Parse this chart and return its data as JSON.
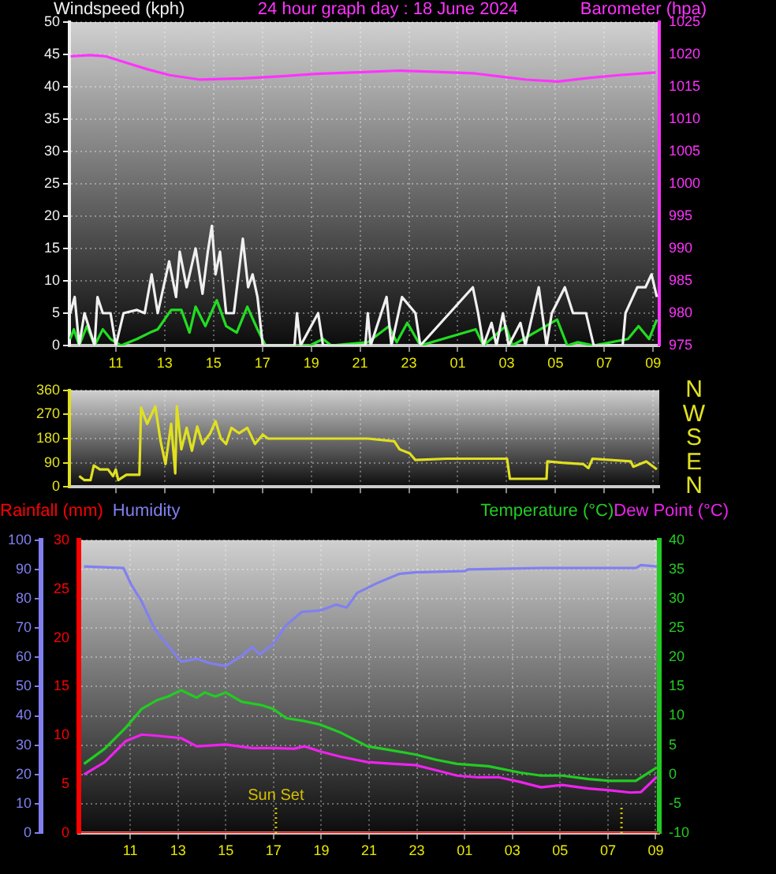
{
  "chart_data": [
    {
      "type": "line",
      "title": "24 hour graph day : 18 June 2024",
      "ylabel": "Windspeed (kph)",
      "y2label": "Barometer (hpa)",
      "xlim": [
        "2024-06-18T09:06",
        "2024-06-19T09:15"
      ],
      "xticks": [
        {
          "value": "2024-06-18T11:00",
          "label": "11"
        },
        {
          "value": "2024-06-18T13:00",
          "label": "13"
        },
        {
          "value": "2024-06-18T15:00",
          "label": "15"
        },
        {
          "value": "2024-06-18T17:00",
          "label": "17"
        },
        {
          "value": "2024-06-18T19:00",
          "label": "19"
        },
        {
          "value": "2024-06-18T21:00",
          "label": "21"
        },
        {
          "value": "2024-06-18T23:00",
          "label": "23"
        },
        {
          "value": "2024-06-19T01:00",
          "label": "01"
        },
        {
          "value": "2024-06-19T03:00",
          "label": "03"
        },
        {
          "value": "2024-06-19T05:00",
          "label": "05"
        },
        {
          "value": "2024-06-19T07:00",
          "label": "07"
        },
        {
          "value": "2024-06-19T09:00",
          "label": "09"
        }
      ],
      "ylim": [
        0,
        50
      ],
      "yticks": [
        0,
        5,
        10,
        15,
        20,
        25,
        30,
        35,
        40,
        45,
        50
      ],
      "y2lim": [
        975,
        1025
      ],
      "y2ticks": [
        975,
        980,
        985,
        990,
        995,
        1000,
        1005,
        1010,
        1015,
        1020,
        1025
      ],
      "grid": true,
      "series": [
        {
          "color": "#f0f0f0",
          "x": [
            "2024-06-18T09:08",
            "2024-06-18T09:19",
            "2024-06-18T09:30",
            "2024-06-18T09:43",
            "2024-06-18T10:08",
            "2024-06-18T10:15",
            "2024-06-18T10:28",
            "2024-06-18T10:47",
            "2024-06-18T11:00",
            "2024-06-18T11:19",
            "2024-06-18T11:52",
            "2024-06-18T12:11",
            "2024-06-18T12:28",
            "2024-06-18T12:43",
            "2024-06-18T13:11",
            "2024-06-18T13:28",
            "2024-06-18T13:37",
            "2024-06-18T13:54",
            "2024-06-18T14:16",
            "2024-06-18T14:33",
            "2024-06-18T14:46",
            "2024-06-18T14:56",
            "2024-06-18T15:05",
            "2024-06-18T15:16",
            "2024-06-18T15:31",
            "2024-06-18T15:50",
            "2024-06-18T16:12",
            "2024-06-18T16:25",
            "2024-06-18T16:36",
            "2024-06-18T16:48",
            "2024-06-18T17:01",
            "2024-06-18T18:19",
            "2024-06-18T18:25",
            "2024-06-18T18:34",
            "2024-06-18T19:17",
            "2024-06-18T19:29",
            "2024-06-18T21:13",
            "2024-06-18T21:19",
            "2024-06-18T21:26",
            "2024-06-18T22:05",
            "2024-06-18T22:17",
            "2024-06-18T22:43",
            "2024-06-18T23:16",
            "2024-06-18T23:28",
            "2024-06-19T01:37",
            "2024-06-19T01:50",
            "2024-06-19T02:03",
            "2024-06-19T02:23",
            "2024-06-19T02:35",
            "2024-06-19T02:51",
            "2024-06-19T03:05",
            "2024-06-19T03:34",
            "2024-06-19T03:46",
            "2024-06-19T04:19",
            "2024-06-19T04:38",
            "2024-06-19T04:51",
            "2024-06-19T05:23",
            "2024-06-19T05:43",
            "2024-06-19T06:15",
            "2024-06-19T06:34",
            "2024-06-19T07:45",
            "2024-06-19T07:52",
            "2024-06-19T08:21",
            "2024-06-19T08:41",
            "2024-06-19T08:56",
            "2024-06-19T09:09"
          ],
          "values": [
            5,
            7.5,
            0,
            5,
            0,
            7.5,
            5,
            5,
            0,
            5,
            5.5,
            5,
            11,
            5,
            13,
            7.5,
            14.5,
            9,
            15,
            8,
            14.5,
            18.5,
            11,
            14.5,
            5,
            5,
            16.5,
            9,
            11,
            7.5,
            0,
            0,
            5,
            0,
            5,
            0,
            0,
            5,
            0,
            7.5,
            0,
            7.5,
            5,
            0,
            9,
            5,
            0,
            3.5,
            0,
            5,
            0,
            3.5,
            0,
            9,
            0,
            5,
            9,
            5,
            5,
            0,
            0,
            5,
            9,
            9,
            11,
            7.5
          ]
        },
        {
          "color": "#22dd22",
          "x": [
            "2024-06-18T09:08",
            "2024-06-18T09:17",
            "2024-06-18T09:30",
            "2024-06-18T09:49",
            "2024-06-18T10:08",
            "2024-06-18T10:28",
            "2024-06-18T10:47",
            "2024-06-18T11:13",
            "2024-06-18T11:52",
            "2024-06-18T12:24",
            "2024-06-18T12:43",
            "2024-06-18T13:16",
            "2024-06-18T13:41",
            "2024-06-18T14:01",
            "2024-06-18T14:16",
            "2024-06-18T14:40",
            "2024-06-18T15:08",
            "2024-06-18T15:31",
            "2024-06-18T15:57",
            "2024-06-18T16:23",
            "2024-06-18T16:48",
            "2024-06-18T17:08",
            "2024-06-18T18:38",
            "2024-06-18T18:57",
            "2024-06-18T19:29",
            "2024-06-18T19:49",
            "2024-06-18T21:19",
            "2024-06-18T22:11",
            "2024-06-18T22:30",
            "2024-06-18T22:56",
            "2024-06-18T23:28",
            "2024-06-19T01:44",
            "2024-06-19T02:03",
            "2024-06-19T02:58",
            "2024-06-19T03:14",
            "2024-06-19T05:04",
            "2024-06-19T05:29",
            "2024-06-19T05:55",
            "2024-06-19T06:34",
            "2024-06-19T07:58",
            "2024-06-19T08:24",
            "2024-06-19T08:50",
            "2024-06-19T09:09"
          ],
          "values": [
            1,
            2.5,
            0,
            3,
            0,
            2.5,
            1,
            0,
            1,
            2,
            2.5,
            5.5,
            5.5,
            2,
            6,
            3,
            7,
            3,
            2,
            6,
            2.5,
            0,
            0,
            0,
            1,
            0,
            0.5,
            3,
            0.5,
            3.5,
            0,
            2.5,
            0,
            3,
            0,
            4,
            0,
            0.5,
            0,
            1,
            3,
            1,
            4
          ]
        },
        {
          "color": "#ff33ff",
          "axis": "y2",
          "x": [
            "2024-06-18T09:09",
            "2024-06-18T09:57",
            "2024-06-18T10:36",
            "2024-06-18T11:27",
            "2024-06-18T12:18",
            "2024-06-18T13:12",
            "2024-06-18T14:27",
            "2024-06-18T16:12",
            "2024-06-18T17:42",
            "2024-06-18T19:12",
            "2024-06-18T21:21",
            "2024-06-18T22:36",
            "2024-06-19T00:06",
            "2024-06-19T01:36",
            "2024-06-19T02:42",
            "2024-06-19T03:48",
            "2024-06-19T05:06",
            "2024-06-19T06:12",
            "2024-06-19T07:36",
            "2024-06-19T09:06"
          ],
          "values": [
            1019.7,
            1019.9,
            1019.7,
            1018.7,
            1017.7,
            1016.8,
            1016.1,
            1016.3,
            1016.6,
            1017,
            1017.3,
            1017.5,
            1017.3,
            1017.1,
            1016.6,
            1016.1,
            1015.8,
            1016.3,
            1016.8,
            1017.2
          ]
        }
      ]
    },
    {
      "type": "line",
      "xlim": [
        "2024-06-18T09:06",
        "2024-06-19T09:15"
      ],
      "xticks": [
        {
          "value": "2024-06-18T11:00",
          "label": null
        },
        {
          "value": "2024-06-18T13:00",
          "label": null
        },
        {
          "value": "2024-06-18T15:00",
          "label": null
        },
        {
          "value": "2024-06-18T17:00",
          "label": null
        },
        {
          "value": "2024-06-18T19:00",
          "label": null
        },
        {
          "value": "2024-06-18T21:00",
          "label": null
        },
        {
          "value": "2024-06-18T23:00",
          "label": null
        },
        {
          "value": "2024-06-19T01:00",
          "label": null
        },
        {
          "value": "2024-06-19T03:00",
          "label": null
        },
        {
          "value": "2024-06-19T05:00",
          "label": null
        },
        {
          "value": "2024-06-19T07:00",
          "label": null
        },
        {
          "value": "2024-06-19T09:00",
          "label": null
        }
      ],
      "ylim": [
        0,
        360
      ],
      "yticks": [
        0,
        90,
        180,
        270,
        360
      ],
      "tick_labels": "y",
      "grid": true,
      "annotations": [
        "N",
        "W",
        "S",
        "E",
        "N"
      ],
      "series": [
        {
          "color": "#e0e020",
          "x": [
            "2024-06-18T09:30",
            "2024-06-18T09:43",
            "2024-06-18T09:58",
            "2024-06-18T10:06",
            "2024-06-18T10:21",
            "2024-06-18T10:41",
            "2024-06-18T10:53",
            "2024-06-18T11:00",
            "2024-06-18T11:06",
            "2024-06-18T11:26",
            "2024-06-18T11:58",
            "2024-06-18T12:02",
            "2024-06-18T12:17",
            "2024-06-18T12:37",
            "2024-06-18T12:50",
            "2024-06-18T13:02",
            "2024-06-18T13:16",
            "2024-06-18T13:26",
            "2024-06-18T13:30",
            "2024-06-18T13:41",
            "2024-06-18T13:54",
            "2024-06-18T14:07",
            "2024-06-18T14:20",
            "2024-06-18T14:33",
            "2024-06-18T14:52",
            "2024-06-18T15:05",
            "2024-06-18T15:18",
            "2024-06-18T15:31",
            "2024-06-18T15:44",
            "2024-06-18T16:03",
            "2024-06-18T16:23",
            "2024-06-18T16:42",
            "2024-06-18T17:01",
            "2024-06-18T17:14",
            "2024-06-18T19:10",
            "2024-06-18T21:19",
            "2024-06-18T22:24",
            "2024-06-18T22:37",
            "2024-06-18T23:02",
            "2024-06-18T23:16",
            "2024-06-19T00:33",
            "2024-06-19T03:01",
            "2024-06-19T03:08",
            "2024-06-19T04:38",
            "2024-06-19T04:40",
            "2024-06-19T05:17",
            "2024-06-19T06:08",
            "2024-06-19T06:21",
            "2024-06-19T06:31",
            "2024-06-19T08:05",
            "2024-06-19T08:11",
            "2024-06-19T08:43",
            "2024-06-19T09:09"
          ],
          "values": [
            40,
            25,
            25,
            80,
            65,
            65,
            40,
            65,
            25,
            45,
            45,
            295,
            235,
            300,
            170,
            85,
            235,
            50,
            300,
            140,
            220,
            135,
            225,
            160,
            200,
            245,
            180,
            160,
            220,
            200,
            220,
            160,
            195,
            180,
            180,
            180,
            170,
            140,
            125,
            100,
            105,
            105,
            30,
            30,
            95,
            90,
            85,
            70,
            105,
            95,
            75,
            95,
            65
          ]
        }
      ]
    },
    {
      "type": "line",
      "xlim": [
        "2024-06-18T08:51",
        "2024-06-19T09:09"
      ],
      "xticks": [
        {
          "value": "2024-06-18T11:00",
          "label": "11"
        },
        {
          "value": "2024-06-18T13:00",
          "label": "13"
        },
        {
          "value": "2024-06-18T15:00",
          "label": "15"
        },
        {
          "value": "2024-06-18T17:00",
          "label": "17"
        },
        {
          "value": "2024-06-18T19:00",
          "label": "19"
        },
        {
          "value": "2024-06-18T21:00",
          "label": "21"
        },
        {
          "value": "2024-06-18T23:00",
          "label": "23"
        },
        {
          "value": "2024-06-19T01:00",
          "label": "01"
        },
        {
          "value": "2024-06-19T03:00",
          "label": "03"
        },
        {
          "value": "2024-06-19T05:00",
          "label": "05"
        },
        {
          "value": "2024-06-19T07:00",
          "label": "07"
        },
        {
          "value": "2024-06-19T09:00",
          "label": "09"
        }
      ],
      "ylim": [
        0,
        100
      ],
      "yticks": [
        0,
        10,
        20,
        30,
        40,
        50,
        60,
        70,
        80,
        90,
        100
      ],
      "y2lim": [
        0,
        30
      ],
      "y2ticks": [
        0,
        5,
        10,
        15,
        20,
        25,
        30
      ],
      "y3lim": [
        -10,
        40
      ],
      "y3ticks": [
        -10,
        -5,
        0,
        5,
        10,
        15,
        20,
        25,
        30,
        35,
        40
      ],
      "grid": true,
      "legend": "top",
      "ref_lines": [
        {
          "axis": "x",
          "value": "2024-06-18T17:06",
          "label": "Sun Set",
          "color": "#d4c000",
          "line_style": "dotted"
        },
        {
          "axis": "x",
          "value": "2024-06-19T07:34",
          "color": "#d4c000",
          "line_style": "dotted"
        }
      ],
      "series": [
        {
          "name": "Rainfall (mm)",
          "color": "#ff0000",
          "axis": "y2",
          "x": [
            "2024-06-18T08:51",
            "2024-06-19T09:09"
          ],
          "values": [
            0,
            0
          ]
        },
        {
          "name": "Humidity",
          "color": "#8080f0",
          "x": [
            "2024-06-18T09:04",
            "2024-06-18T10:43",
            "2024-06-18T11:02",
            "2024-06-18T11:29",
            "2024-06-18T12:02",
            "2024-06-18T12:35",
            "2024-06-18T13:08",
            "2024-06-18T13:47",
            "2024-06-18T14:20",
            "2024-06-18T15:00",
            "2024-06-18T15:40",
            "2024-06-18T16:06",
            "2024-06-18T16:26",
            "2024-06-18T16:59",
            "2024-06-18T17:32",
            "2024-06-18T18:11",
            "2024-06-18T18:58",
            "2024-06-18T19:37",
            "2024-06-18T20:04",
            "2024-06-18T20:30",
            "2024-06-18T21:23",
            "2024-06-18T22:16",
            "2024-06-18T22:56",
            "2024-06-19T01:01",
            "2024-06-19T01:08",
            "2024-06-19T04:12",
            "2024-06-19T08:10",
            "2024-06-19T08:23",
            "2024-06-19T09:03"
          ],
          "values": [
            91,
            90.5,
            85,
            79,
            69.5,
            64,
            58.5,
            59.5,
            58,
            57,
            60.5,
            63.5,
            61,
            64.5,
            71,
            75.5,
            76,
            78,
            77,
            82,
            85.5,
            88.5,
            89,
            89.5,
            90,
            90.5,
            90.5,
            91.5,
            91
          ]
        },
        {
          "name": "Temperature (°C)",
          "color": "#22cc22",
          "axis": "y3",
          "x": [
            "2024-06-18T09:04",
            "2024-06-18T09:56",
            "2024-06-18T10:49",
            "2024-06-18T11:29",
            "2024-06-18T12:08",
            "2024-06-18T12:35",
            "2024-06-18T13:08",
            "2024-06-18T13:47",
            "2024-06-18T14:07",
            "2024-06-18T14:34",
            "2024-06-18T15:00",
            "2024-06-18T15:40",
            "2024-06-18T16:32",
            "2024-06-18T16:59",
            "2024-06-18T17:32",
            "2024-06-18T18:18",
            "2024-06-18T18:58",
            "2024-06-18T19:50",
            "2024-06-18T20:56",
            "2024-06-18T21:50",
            "2024-06-18T22:56",
            "2024-06-18T23:49",
            "2024-06-19T00:41",
            "2024-06-19T02:00",
            "2024-06-19T03:20",
            "2024-06-19T04:12",
            "2024-06-19T05:05",
            "2024-06-19T06:11",
            "2024-06-19T07:04",
            "2024-06-19T08:10",
            "2024-06-19T09:03"
          ],
          "values": [
            1.8,
            4.4,
            8,
            11.2,
            12.7,
            13.3,
            14.4,
            13.1,
            14,
            13.3,
            14,
            12.4,
            11.8,
            11.2,
            9.6,
            9.1,
            8.5,
            7.1,
            4.8,
            4.2,
            3.4,
            2.5,
            1.8,
            1.4,
            0.3,
            -0.2,
            -0.2,
            -0.8,
            -1.1,
            -1.1,
            1.2
          ]
        },
        {
          "name": "Dew Point (°C)",
          "color": "#ee22ee",
          "axis": "y3",
          "x": [
            "2024-06-18T09:04",
            "2024-06-18T09:56",
            "2024-06-18T10:49",
            "2024-06-18T11:29",
            "2024-06-18T12:08",
            "2024-06-18T13:08",
            "2024-06-18T13:47",
            "2024-06-18T15:00",
            "2024-06-18T16:06",
            "2024-06-18T16:59",
            "2024-06-18T17:52",
            "2024-06-18T18:18",
            "2024-06-18T18:58",
            "2024-06-18T19:50",
            "2024-06-18T20:56",
            "2024-06-18T22:03",
            "2024-06-18T22:56",
            "2024-06-18T23:49",
            "2024-06-19T00:41",
            "2024-06-19T01:34",
            "2024-06-19T02:27",
            "2024-06-19T03:20",
            "2024-06-19T04:12",
            "2024-06-19T05:05",
            "2024-06-19T06:11",
            "2024-06-19T07:04",
            "2024-06-19T07:57",
            "2024-06-19T08:23",
            "2024-06-19T09:03"
          ],
          "values": [
            0,
            2.1,
            5.7,
            6.8,
            6.6,
            6.2,
            4.8,
            5.1,
            4.5,
            4.5,
            4.4,
            4.8,
            3.9,
            3,
            2.1,
            1.8,
            1.6,
            0.7,
            -0.2,
            -0.5,
            -0.5,
            -1.3,
            -2.2,
            -1.8,
            -2.4,
            -2.7,
            -3.1,
            -3,
            -0.4
          ]
        }
      ]
    }
  ]
}
